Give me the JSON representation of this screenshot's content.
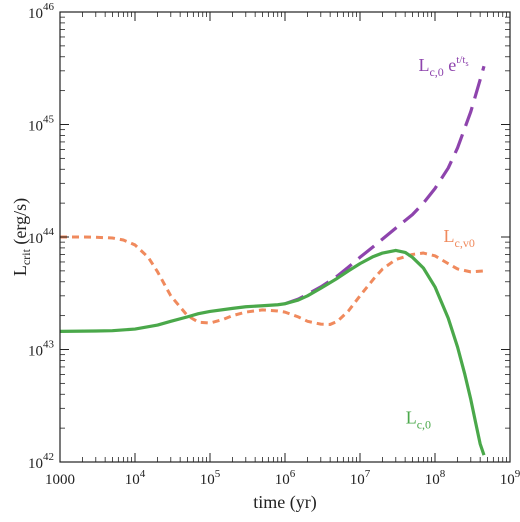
{
  "chart_data": {
    "type": "line",
    "title": "",
    "xlabel": "time (yr)",
    "ylabel": {
      "base": "L",
      "sub": "crit",
      "unit": " (erg/s)"
    },
    "xscale": "log",
    "yscale": "log",
    "xlim": [
      1000,
      1000000000
    ],
    "ylim": [
      1e+42,
      1e+46
    ],
    "x_ticks": [
      {
        "value": 1000,
        "base": "1000",
        "exp": ""
      },
      {
        "value": 10000,
        "base": "10",
        "exp": "4"
      },
      {
        "value": 100000,
        "base": "10",
        "exp": "5"
      },
      {
        "value": 1000000,
        "base": "10",
        "exp": "6"
      },
      {
        "value": 10000000,
        "base": "10",
        "exp": "7"
      },
      {
        "value": 100000000,
        "base": "10",
        "exp": "8"
      },
      {
        "value": 1000000000,
        "base": "10",
        "exp": "9"
      }
    ],
    "y_ticks": [
      {
        "value": 1e+42,
        "base": "10",
        "exp": "42"
      },
      {
        "value": 1e+43,
        "base": "10",
        "exp": "43"
      },
      {
        "value": 1e+44,
        "base": "10",
        "exp": "44"
      },
      {
        "value": 1e+45,
        "base": "10",
        "exp": "45"
      },
      {
        "value": 1e+46,
        "base": "10",
        "exp": "46"
      }
    ],
    "grid": false,
    "series": [
      {
        "id": "lc0-exp",
        "label": {
          "main": "L",
          "sub": "c,0",
          "tail": " e",
          "sup": "t/t",
          "supsub": "s",
          "at": [
            130000000.0,
            3e+45
          ]
        },
        "color": "#8e44ad",
        "style": "long-dash",
        "points": [
          [
            1000000,
            2.55e+43
          ],
          [
            1500000,
            2.8e+43
          ],
          [
            2000000,
            3.1e+43
          ],
          [
            3000000,
            3.6e+43
          ],
          [
            5000000,
            4.5e+43
          ],
          [
            7000000,
            5.4e+43
          ],
          [
            10000000,
            6.6e+43
          ],
          [
            15000000,
            8.2e+43
          ],
          [
            20000000,
            9.6e+43
          ],
          [
            30000000,
            1.2e+44
          ],
          [
            50000000,
            1.58e+44
          ],
          [
            70000000,
            2e+44
          ],
          [
            100000000,
            2.7e+44
          ],
          [
            150000000,
            4.1e+44
          ],
          [
            200000000,
            6.2e+44
          ],
          [
            300000000,
            1.3e+45
          ],
          [
            400000000,
            2.5e+45
          ],
          [
            450000000,
            3.3e+45
          ]
        ]
      },
      {
        "id": "lcv0",
        "label": {
          "main": "L",
          "sub": "c,v0",
          "at": [
            210000000.0,
            9e+43
          ]
        },
        "color": "#f08a5d",
        "style": "short-dash",
        "points": [
          [
            1000,
            1e+44
          ],
          [
            2000,
            1e+44
          ],
          [
            3000,
            9.95e+43
          ],
          [
            5000,
            9.8e+43
          ],
          [
            7000,
            9.4e+43
          ],
          [
            10000,
            8.5e+43
          ],
          [
            15000,
            6.6e+43
          ],
          [
            20000,
            4.9e+43
          ],
          [
            30000,
            3e+43
          ],
          [
            50000,
            2e+43
          ],
          [
            70000,
            1.75e+43
          ],
          [
            100000,
            1.72e+43
          ],
          [
            150000,
            1.85e+43
          ],
          [
            200000,
            2e+43
          ],
          [
            300000,
            2.15e+43
          ],
          [
            500000,
            2.25e+43
          ],
          [
            800000,
            2.2e+43
          ],
          [
            1000000,
            2.15e+43
          ],
          [
            1500000,
            1.95e+43
          ],
          [
            2000000,
            1.78e+43
          ],
          [
            3000000,
            1.68e+43
          ],
          [
            4000000,
            1.67e+43
          ],
          [
            5000000,
            1.78e+43
          ],
          [
            7000000,
            2.2e+43
          ],
          [
            10000000,
            3e+43
          ],
          [
            15000000,
            4.2e+43
          ],
          [
            20000000,
            5.2e+43
          ],
          [
            30000000,
            6.3e+43
          ],
          [
            50000000,
            7e+43
          ],
          [
            70000000,
            7.2e+43
          ],
          [
            100000000,
            6.8e+43
          ],
          [
            150000000,
            5.8e+43
          ],
          [
            200000000,
            5.2e+43
          ],
          [
            300000000,
            4.9e+43
          ],
          [
            450000000,
            5e+43
          ]
        ]
      },
      {
        "id": "lc0",
        "label": {
          "main": "L",
          "sub": "c,0",
          "at": [
            60000000.0,
            2.2e+42
          ]
        },
        "color": "#4aa84a",
        "style": "solid",
        "points": [
          [
            1000,
            1.45e+43
          ],
          [
            3000,
            1.46e+43
          ],
          [
            5000,
            1.47e+43
          ],
          [
            10000,
            1.52e+43
          ],
          [
            20000,
            1.65e+43
          ],
          [
            30000,
            1.78e+43
          ],
          [
            50000,
            1.95e+43
          ],
          [
            70000,
            2.08e+43
          ],
          [
            100000,
            2.18e+43
          ],
          [
            200000,
            2.32e+43
          ],
          [
            300000,
            2.4e+43
          ],
          [
            500000,
            2.45e+43
          ],
          [
            800000,
            2.5e+43
          ],
          [
            1000000,
            2.55e+43
          ],
          [
            1500000,
            2.75e+43
          ],
          [
            2000000,
            3e+43
          ],
          [
            3000000,
            3.5e+43
          ],
          [
            5000000,
            4.3e+43
          ],
          [
            7000000,
            5e+43
          ],
          [
            10000000,
            5.8e+43
          ],
          [
            15000000,
            6.7e+43
          ],
          [
            20000000,
            7.2e+43
          ],
          [
            30000000,
            7.6e+43
          ],
          [
            40000000,
            7.3e+43
          ],
          [
            50000000,
            6.6e+43
          ],
          [
            70000000,
            5.3e+43
          ],
          [
            100000000,
            3.6e+43
          ],
          [
            150000000,
            1.9e+43
          ],
          [
            200000000,
            1.05e+43
          ],
          [
            250000000,
            6e+42
          ],
          [
            300000000,
            3.6e+42
          ],
          [
            350000000,
            2.2e+42
          ],
          [
            400000000,
            1.45e+42
          ],
          [
            450000000,
            1.15e+42
          ]
        ]
      }
    ]
  }
}
